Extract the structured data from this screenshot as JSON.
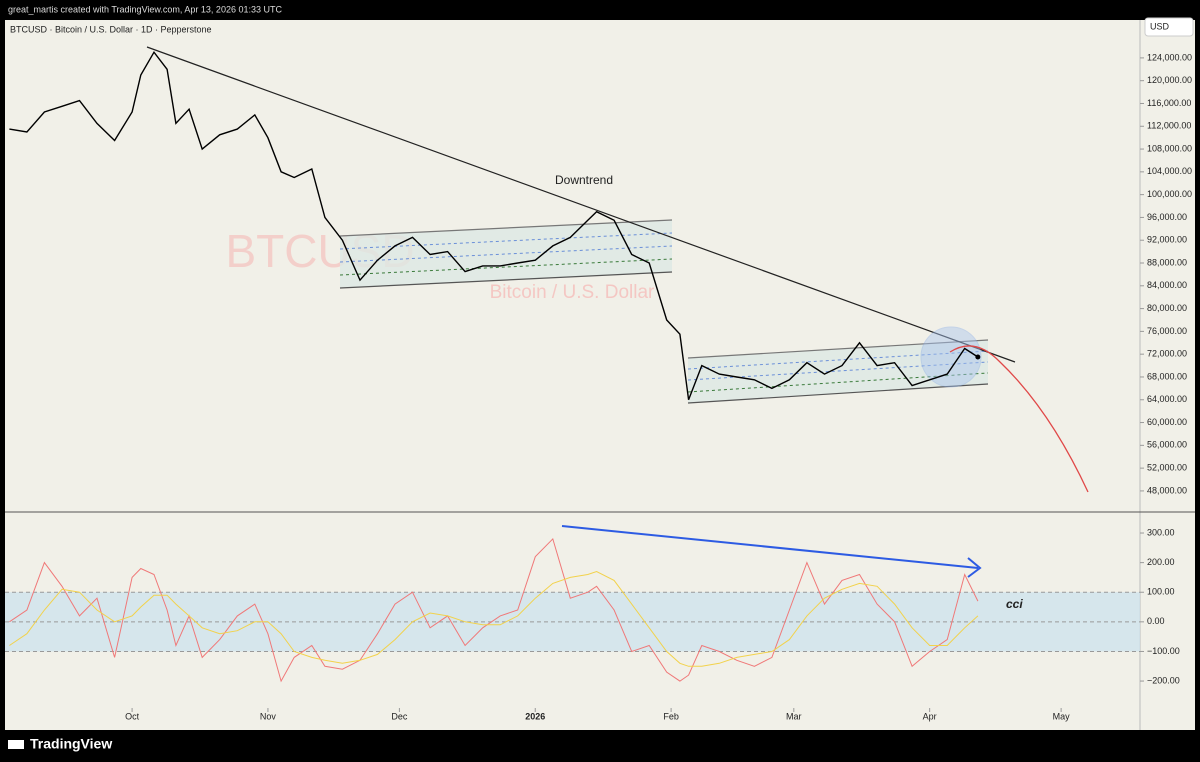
{
  "header": {
    "text": "great_martis created with TradingView.com, Apr 13, 2026 01:33 UTC"
  },
  "footer": {
    "brand": "TradingView"
  },
  "chart_data": [
    {
      "type": "line",
      "title": "BTCUSD · Bitcoin / U.S. Dollar · 1D · Pepperstone",
      "currency": "USD",
      "watermark": {
        "symbol": "BTCUSD",
        "description": "Bitcoin / U.S. Dollar"
      },
      "annotations": [
        "Downtrend"
      ],
      "x": [
        -28,
        -24,
        -20,
        -16,
        -12,
        -8,
        -4,
        0,
        2,
        5,
        8,
        10,
        13,
        16,
        20,
        24,
        28,
        31,
        34,
        37,
        41,
        44,
        48,
        52,
        56,
        60,
        64,
        68,
        72,
        76,
        80,
        84,
        88,
        92,
        96,
        100,
        104,
        106,
        110,
        114,
        118,
        122,
        125,
        127,
        130,
        134,
        138,
        142,
        146,
        150,
        154,
        158,
        162,
        166,
        170,
        174,
        178,
        182,
        186,
        190,
        193
      ],
      "series": [
        {
          "color": "#000000",
          "values": [
            111500,
            111000,
            114500,
            115500,
            116500,
            112500,
            109500,
            114500,
            121000,
            125000,
            122000,
            112500,
            115000,
            108000,
            110500,
            111500,
            114000,
            110000,
            104000,
            103000,
            104500,
            96000,
            92000,
            85000,
            88500,
            91000,
            92500,
            89500,
            90000,
            86500,
            87500,
            87500,
            88000,
            88500,
            91000,
            92500,
            95500,
            97000,
            95500,
            89500,
            88000,
            78000,
            75500,
            64000,
            70000,
            68500,
            68000,
            67500,
            66000,
            67500,
            70500,
            68500,
            70000,
            74000,
            70000,
            70500,
            66500,
            67500,
            68500,
            73000,
            71500
          ]
        }
      ],
      "xlim": [
        -29,
        230
      ],
      "ylim": [
        44300,
        130300
      ],
      "yticks": [
        {
          "value": 48000,
          "label": "48,000.00"
        },
        {
          "value": 52000,
          "label": "52,000.00"
        },
        {
          "value": 56000,
          "label": "56,000.00"
        },
        {
          "value": 60000,
          "label": "60,000.00"
        },
        {
          "value": 64000,
          "label": "64,000.00"
        },
        {
          "value": 68000,
          "label": "68,000.00"
        },
        {
          "value": 72000,
          "label": "72,000.00"
        },
        {
          "value": 76000,
          "label": "76,000.00"
        },
        {
          "value": 80000,
          "label": "80,000.00"
        },
        {
          "value": 84000,
          "label": "84,000.00"
        },
        {
          "value": 88000,
          "label": "88,000.00"
        },
        {
          "value": 92000,
          "label": "92,000.00"
        },
        {
          "value": 96000,
          "label": "96,000.00"
        },
        {
          "value": 100000,
          "label": "100,000.00"
        },
        {
          "value": 104000,
          "label": "104,000.00"
        },
        {
          "value": 108000,
          "label": "108,000.00"
        },
        {
          "value": 112000,
          "label": "112,000.00"
        },
        {
          "value": 116000,
          "label": "116,000.00"
        },
        {
          "value": 120000,
          "label": "120,000.00"
        },
        {
          "value": 124000,
          "label": "124,000.00"
        }
      ]
    },
    {
      "type": "line",
      "annotations": [
        "cci"
      ],
      "x": [
        -28,
        -24,
        -20,
        -16,
        -12,
        -8,
        -4,
        0,
        2,
        5,
        8,
        10,
        13,
        16,
        20,
        24,
        28,
        31,
        34,
        37,
        41,
        44,
        48,
        52,
        56,
        60,
        64,
        68,
        72,
        76,
        80,
        84,
        88,
        92,
        96,
        100,
        104,
        106,
        110,
        114,
        118,
        122,
        125,
        127,
        130,
        134,
        138,
        142,
        146,
        150,
        154,
        158,
        162,
        166,
        170,
        174,
        178,
        182,
        186,
        190,
        193
      ],
      "series": [
        {
          "color": "#f07878",
          "values": [
            0,
            40,
            200,
            120,
            20,
            80,
            -120,
            150,
            180,
            160,
            40,
            -80,
            20,
            -120,
            -60,
            20,
            60,
            -40,
            -200,
            -120,
            -80,
            -150,
            -160,
            -130,
            -40,
            60,
            100,
            -20,
            20,
            -80,
            -20,
            20,
            40,
            220,
            280,
            80,
            100,
            120,
            40,
            -100,
            -80,
            -170,
            -200,
            -180,
            -80,
            -100,
            -130,
            -150,
            -120,
            40,
            200,
            60,
            140,
            160,
            60,
            0,
            -150,
            -100,
            -60,
            160,
            70
          ]
        },
        {
          "color": "#f2d24b",
          "values": [
            -80,
            -40,
            40,
            110,
            100,
            40,
            0,
            20,
            50,
            90,
            90,
            60,
            20,
            -20,
            -40,
            -30,
            0,
            0,
            -40,
            -100,
            -120,
            -130,
            -140,
            -130,
            -110,
            -60,
            0,
            30,
            20,
            0,
            -10,
            -10,
            20,
            80,
            130,
            150,
            160,
            170,
            140,
            60,
            -20,
            -100,
            -140,
            -150,
            -150,
            -140,
            -120,
            -110,
            -100,
            -60,
            20,
            80,
            110,
            130,
            120,
            60,
            -20,
            -80,
            -80,
            -20,
            20
          ]
        }
      ],
      "xlim": [
        -29,
        230
      ],
      "ylim": [
        -291,
        371
      ],
      "band": [
        -100,
        100
      ],
      "xticks": [
        {
          "value": 0,
          "label": "Oct"
        },
        {
          "value": 31,
          "label": "Nov"
        },
        {
          "value": 61,
          "label": "Dec"
        },
        {
          "value": 92,
          "label": "2026"
        },
        {
          "value": 123,
          "label": "Feb"
        },
        {
          "value": 151,
          "label": "Mar"
        },
        {
          "value": 182,
          "label": "Apr"
        },
        {
          "value": 212,
          "label": "May"
        }
      ],
      "yticks": [
        {
          "value": 300,
          "label": "300.00"
        },
        {
          "value": 200,
          "label": "200.00"
        },
        {
          "value": 100,
          "label": "100.00"
        },
        {
          "value": 0,
          "label": "0.00"
        },
        {
          "value": -100,
          "label": "−100.00"
        },
        {
          "value": -200,
          "label": "−200.00"
        }
      ]
    }
  ]
}
